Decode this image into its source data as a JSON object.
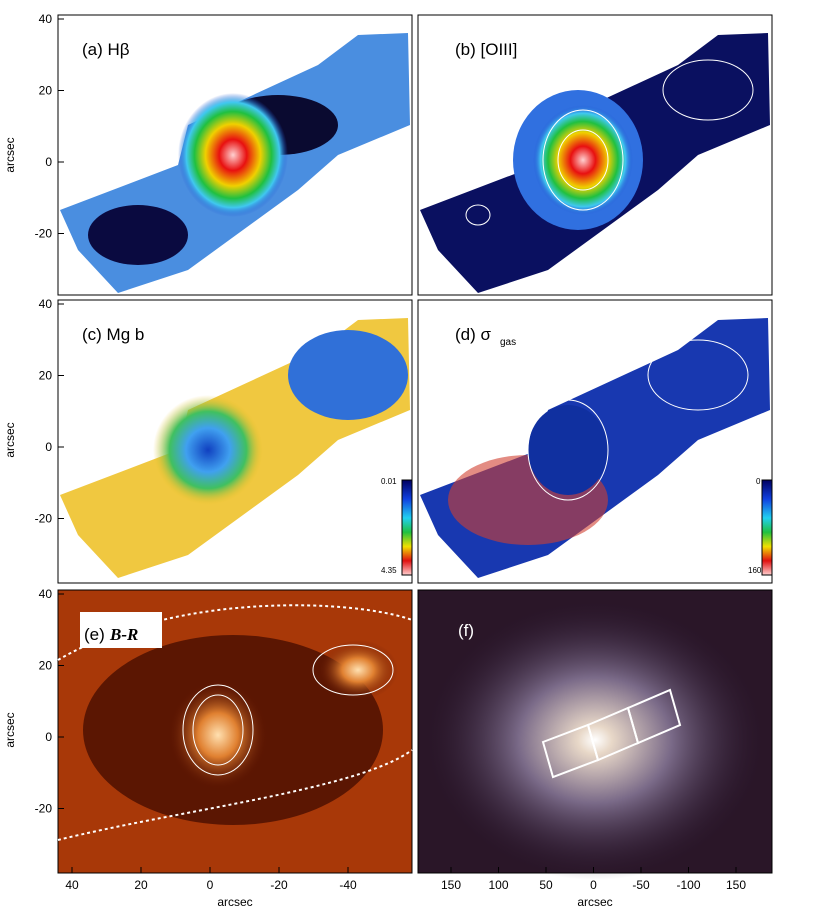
{
  "panels": [
    {
      "label": "(a) Hβ"
    },
    {
      "label": "(b) [OIII]"
    },
    {
      "label": "(c) Mg b",
      "colorbar": {
        "top": 0.01,
        "bottom": 4.35
      }
    },
    {
      "label": "(d) σ",
      "subscript": "gas",
      "colorbar": {
        "top": 0,
        "bottom": 160
      }
    },
    {
      "label": "(e)",
      "emphasis": "B-R"
    },
    {
      "label": "(f)"
    }
  ],
  "rows": [
    {
      "y_label": "arcsec",
      "y_ticks": [
        40,
        20,
        0,
        -20
      ]
    },
    {
      "y_label": "arcsec",
      "y_ticks": [
        40,
        20,
        0,
        -20
      ]
    },
    {
      "y_label": "arcsec",
      "y_ticks": [
        40,
        20,
        0,
        -20
      ]
    }
  ],
  "x_axes": [
    {
      "label": "arcsec",
      "ticks": [
        40,
        20,
        0,
        -20,
        -40
      ]
    },
    {
      "label": "arcsec",
      "ticks": [
        150,
        100,
        50,
        0,
        -50,
        -100,
        150
      ]
    }
  ]
}
